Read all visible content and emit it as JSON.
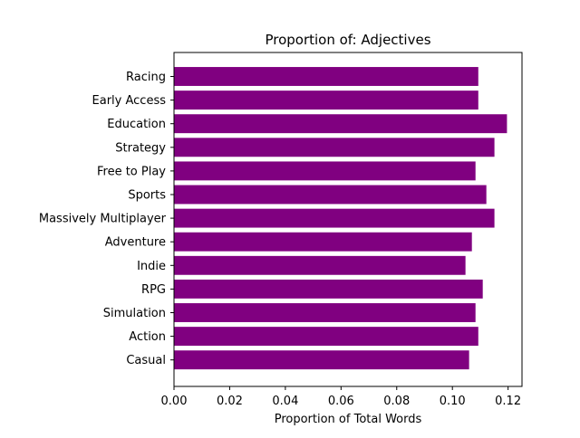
{
  "chart_data": {
    "type": "bar",
    "orientation": "horizontal",
    "title": "Proportion of: Adjectives",
    "xlabel": "Proportion of Total Words",
    "ylabel": "",
    "categories": [
      "Racing",
      "Early Access",
      "Education",
      "Strategy",
      "Free to Play",
      "Sports",
      "Massively Multiplayer",
      "Adventure",
      "Indie",
      "RPG",
      "Simulation",
      "Action",
      "Casual"
    ],
    "values": [
      0.1093,
      0.1093,
      0.1196,
      0.1151,
      0.1083,
      0.1122,
      0.1151,
      0.107,
      0.1047,
      0.1109,
      0.1083,
      0.1093,
      0.106
    ],
    "xlim": [
      0,
      0.125
    ],
    "xticks": [
      0.0,
      0.02,
      0.04,
      0.06,
      0.08,
      0.1,
      0.12
    ],
    "xtick_labels": [
      "0.00",
      "0.02",
      "0.04",
      "0.06",
      "0.08",
      "0.10",
      "0.12"
    ],
    "grid": false,
    "legend": "none",
    "bar_color": "#800080"
  }
}
